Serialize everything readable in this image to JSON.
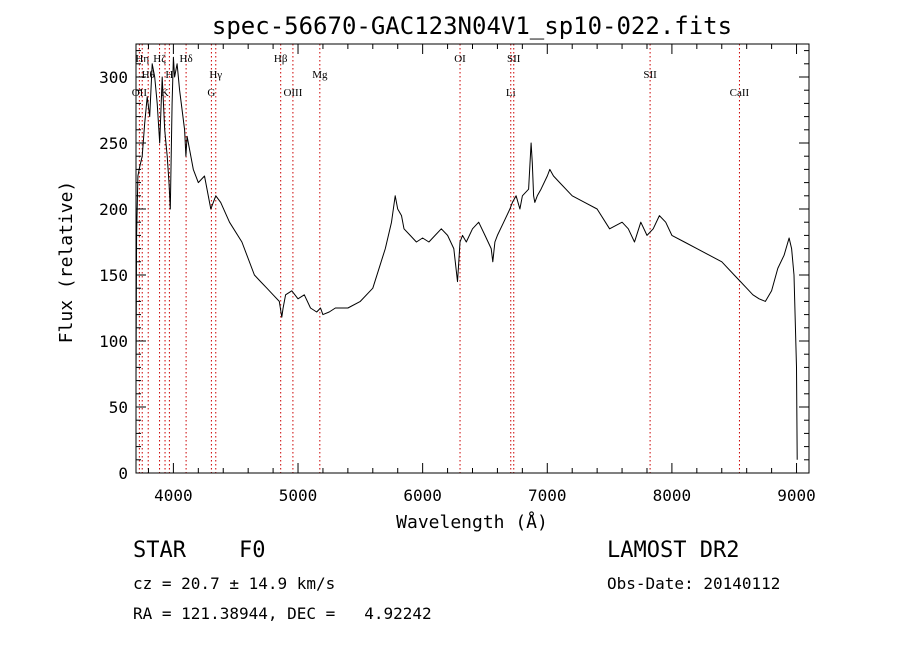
{
  "chart_data": {
    "type": "line",
    "title": "spec-56670-GAC123N04V1_sp10-022.fits",
    "xlabel": "Wavelength (Å)",
    "ylabel": "Flux (relative)",
    "xlim": [
      3700,
      9100
    ],
    "ylim": [
      0,
      325
    ],
    "xticks": [
      4000,
      5000,
      6000,
      7000,
      8000,
      9000
    ],
    "yticks": [
      0,
      50,
      100,
      150,
      200,
      250,
      300
    ],
    "x_minor_step": 200,
    "y_minor_step": 10,
    "line_color": "#000000",
    "marker_color": "#cc0000",
    "series": [
      {
        "x": [
          3700,
          3705,
          3715,
          3730,
          3750,
          3770,
          3790,
          3810,
          3830,
          3850,
          3870,
          3890,
          3910,
          3930,
          3950,
          3965,
          3975,
          3990,
          4000,
          4010,
          4030,
          4050,
          4070,
          4090,
          4100,
          4110,
          4130,
          4160,
          4200,
          4250,
          4300,
          4340,
          4380,
          4450,
          4550,
          4650,
          4700,
          4750,
          4800,
          4850,
          4870,
          4880,
          4900,
          4950,
          5000,
          5050,
          5100,
          5150,
          5180,
          5200,
          5250,
          5300,
          5400,
          5500,
          5600,
          5700,
          5750,
          5780,
          5800,
          5830,
          5850,
          5900,
          5950,
          6000,
          6050,
          6100,
          6150,
          6200,
          6250,
          6280,
          6290,
          6300,
          6320,
          6350,
          6400,
          6450,
          6500,
          6550,
          6563,
          6580,
          6600,
          6650,
          6700,
          6720,
          6750,
          6780,
          6800,
          6850,
          6870,
          6880,
          6890,
          6900,
          6920,
          6950,
          7000,
          7020,
          7050,
          7100,
          7200,
          7300,
          7400,
          7500,
          7600,
          7650,
          7700,
          7750,
          7800,
          7850,
          7900,
          7950,
          8000,
          8100,
          8200,
          8300,
          8400,
          8500,
          8550,
          8600,
          8650,
          8700,
          8750,
          8800,
          8850,
          8900,
          8940,
          8960,
          8980,
          9000,
          9005
        ],
        "y": [
          70,
          180,
          225,
          232,
          240,
          265,
          285,
          270,
          310,
          300,
          280,
          250,
          300,
          260,
          240,
          220,
          200,
          280,
          315,
          300,
          310,
          290,
          275,
          260,
          240,
          255,
          245,
          230,
          220,
          225,
          200,
          210,
          205,
          190,
          175,
          150,
          145,
          140,
          135,
          130,
          118,
          125,
          135,
          138,
          132,
          135,
          125,
          122,
          125,
          120,
          122,
          125,
          125,
          130,
          140,
          170,
          190,
          210,
          200,
          195,
          185,
          180,
          175,
          178,
          175,
          180,
          185,
          180,
          170,
          145,
          160,
          175,
          180,
          175,
          185,
          190,
          180,
          170,
          160,
          175,
          180,
          190,
          200,
          205,
          210,
          200,
          210,
          215,
          250,
          235,
          210,
          205,
          210,
          215,
          225,
          230,
          225,
          220,
          210,
          205,
          200,
          185,
          190,
          185,
          175,
          190,
          180,
          185,
          195,
          190,
          180,
          175,
          170,
          165,
          160,
          150,
          145,
          140,
          135,
          132,
          130,
          138,
          155,
          165,
          178,
          170,
          150,
          80,
          10
        ]
      }
    ],
    "lines": [
      {
        "x": 3727,
        "label": "OII",
        "row": 3
      },
      {
        "x": 3750,
        "label": "Hη",
        "row": 1
      },
      {
        "x": 3798,
        "label": "Hθ",
        "row": 2
      },
      {
        "x": 3889,
        "label": "Hζ",
        "row": 1
      },
      {
        "x": 3933,
        "label": "K",
        "row": 3
      },
      {
        "x": 3968,
        "label": "H",
        "row": 2
      },
      {
        "x": 4102,
        "label": "Hδ",
        "row": 1
      },
      {
        "x": 4305,
        "label": "G",
        "row": 3
      },
      {
        "x": 4340,
        "label": "Hγ",
        "row": 2
      },
      {
        "x": 4861,
        "label": "Hβ",
        "row": 1
      },
      {
        "x": 4959,
        "label": "OIII",
        "row": 3
      },
      {
        "x": 5175,
        "label": "Mg",
        "row": 2
      },
      {
        "x": 6300,
        "label": "OI",
        "row": 1
      },
      {
        "x": 6707,
        "label": "Li",
        "row": 3
      },
      {
        "x": 6731,
        "label": "SII",
        "row": 1
      },
      {
        "x": 7825,
        "label": "SII",
        "row": 2
      },
      {
        "x": 8542,
        "label": "CaII",
        "row": 3
      }
    ]
  },
  "info": {
    "object_class": "STAR    F0",
    "survey": "LAMOST DR2",
    "cz": "cz = 20.7 ± 14.9 km/s",
    "obs_date": "Obs-Date: 20140112",
    "radec": "RA = 121.38944, DEC =   4.92242"
  }
}
